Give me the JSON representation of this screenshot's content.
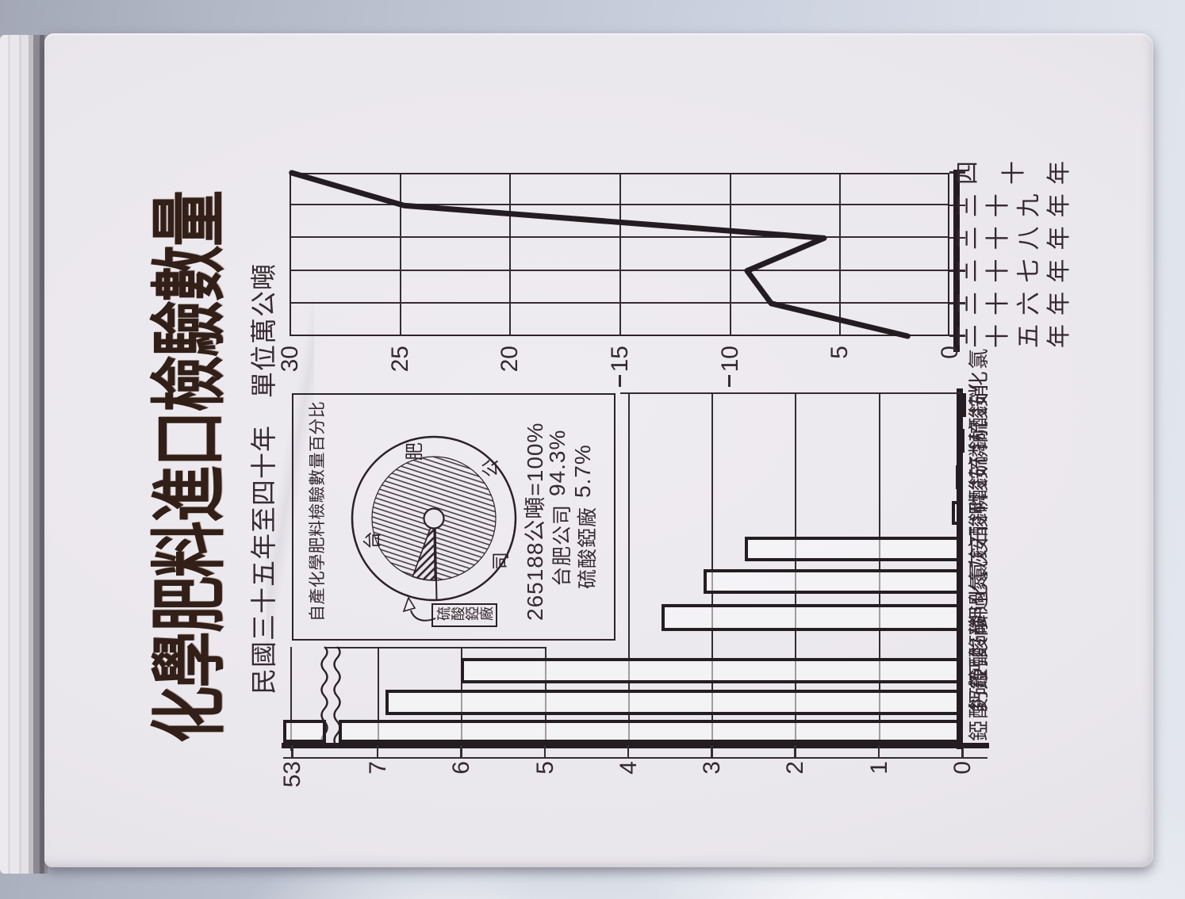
{
  "page": {
    "title": "化學肥料進口檢驗數量",
    "subtitle": "民國三十五年至四十年　單位萬公噸"
  },
  "pie_panel": {
    "title": "自產化學肥料檢驗數量百分比",
    "ring_chars": [
      "台",
      "肥",
      "公",
      "司"
    ],
    "callout_label": "硫酸錏廠",
    "stats": {
      "total": "265188公噸=100%",
      "row2_name": "台肥公司",
      "row2_value": "94.3%",
      "row3_name": "硫酸錏廠",
      "row3_value": "5.7%"
    }
  },
  "chart_data": [
    {
      "type": "line",
      "title": "化學肥料進口檢驗數量",
      "subtitle": "民國三十五年至四十年",
      "unit": "萬公噸",
      "categories": [
        "三十五年",
        "三十六年",
        "三十七年",
        "三十八年",
        "三十九年",
        "四十年"
      ],
      "values": [
        1.9,
        8.1,
        9.2,
        5.7,
        24.8,
        29.9
      ],
      "ylim": [
        0,
        30
      ],
      "yticks": [
        0,
        5,
        10,
        15,
        20,
        25,
        30
      ],
      "grid": "on",
      "ylabel": "萬公噸"
    },
    {
      "type": "pie",
      "title": "自產化學肥料檢驗數量百分比",
      "total_label": "265188公噸=100%",
      "slices": [
        {
          "label": "台肥公司",
          "value": 94.3
        },
        {
          "label": "硫酸錏廠",
          "value": 5.7
        }
      ]
    },
    {
      "type": "bar",
      "unit": "萬公噸",
      "categories": [
        "硫酸錏",
        "硝酸錏鈣",
        "過磷酸鈣",
        "氯化鉀",
        "石灰氮",
        "磷酸銨",
        "硫酸鉀",
        "硫磷銨",
        "硝酸鈉",
        "氯化銨"
      ],
      "values": [
        53,
        6.9,
        6.0,
        3.6,
        3.1,
        2.6,
        0.12,
        0.08,
        0.05,
        0.03
      ],
      "yticks": [
        0,
        1,
        2,
        3,
        4,
        5,
        6,
        7,
        53
      ],
      "broken_axis": true,
      "ylim": [
        0,
        7.6
      ]
    }
  ]
}
